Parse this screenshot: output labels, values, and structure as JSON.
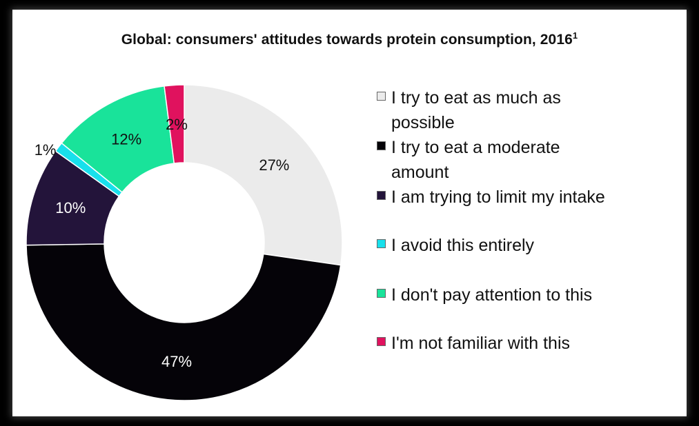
{
  "chart_data": {
    "type": "pie",
    "title": "Global: consumers' attitudes towards protein consumption, 2016",
    "title_superscript": "1",
    "donut": true,
    "slices": [
      {
        "label": "I try to eat as much as possible",
        "value": 27,
        "display": "27%",
        "color": "#ebebeb",
        "label_color": "#111111"
      },
      {
        "label": "I try to eat a moderate amount",
        "value": 47,
        "display": "47%",
        "color": "#050308",
        "label_color": "#ffffff"
      },
      {
        "label": "I am trying to limit my intake",
        "value": 10,
        "display": "10%",
        "color": "#23143a",
        "label_color": "#ffffff"
      },
      {
        "label": "I avoid this entirely",
        "value": 1,
        "display": "1%",
        "color": "#18e0ec",
        "label_color": "#111111"
      },
      {
        "label": "I don't pay attention to this",
        "value": 12,
        "display": "12%",
        "color": "#19e39a",
        "label_color": "#111111"
      },
      {
        "label": "I'm not familiar with this",
        "value": 2,
        "display": "2%",
        "color": "#e0125e",
        "label_color": "#111111"
      }
    ],
    "legend_position": "right"
  },
  "legend": {
    "items": [
      {
        "line1": "I try to eat as much as",
        "line2": "possible"
      },
      {
        "line1": "I try to eat a moderate",
        "line2": "amount"
      },
      {
        "line1": "I am trying to limit my intake",
        "line2": ""
      },
      {
        "line1": "I avoid this entirely",
        "line2": ""
      },
      {
        "line1": "I don't pay attention to this",
        "line2": ""
      },
      {
        "line1": "I'm not familiar with this",
        "line2": ""
      }
    ]
  }
}
